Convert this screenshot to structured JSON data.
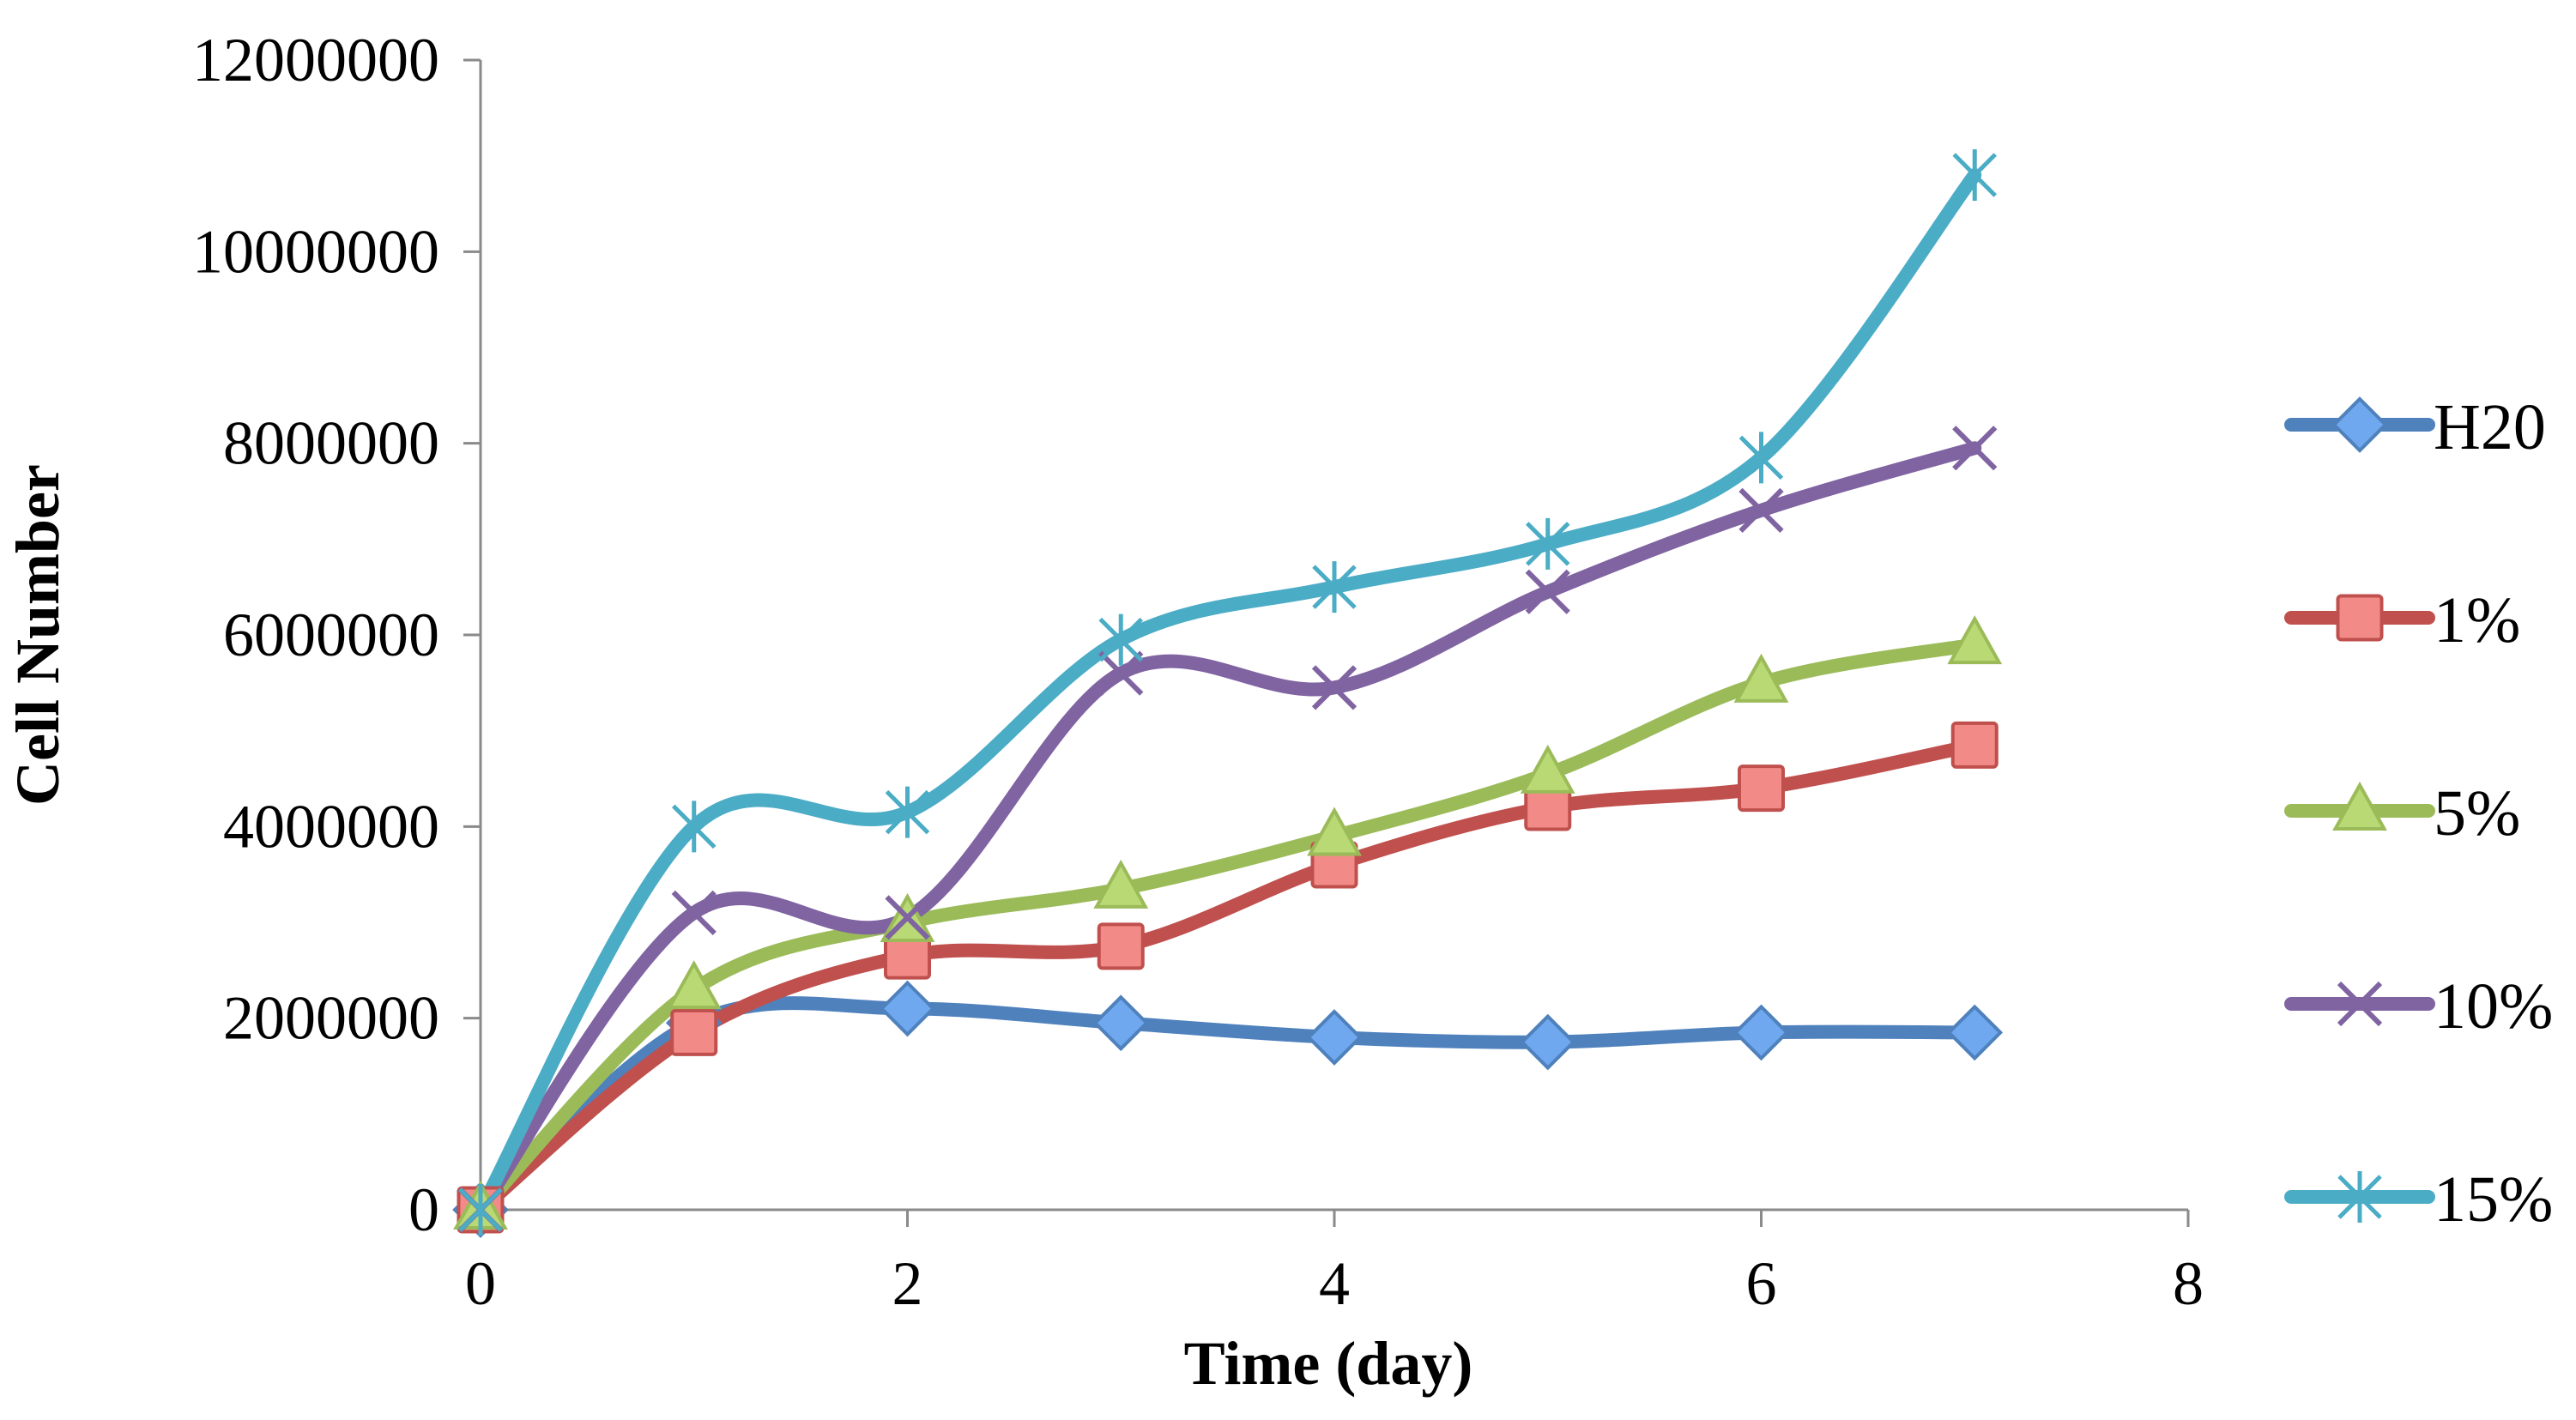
{
  "chart_data": {
    "type": "line",
    "title": "",
    "xlabel": "Time (day)",
    "ylabel": "Cell Number",
    "xlim": [
      0,
      8
    ],
    "ylim": [
      0,
      12000000
    ],
    "x_ticks": [
      0,
      2,
      4,
      6,
      8
    ],
    "y_ticks": [
      0,
      2000000,
      4000000,
      6000000,
      8000000,
      10000000,
      12000000
    ],
    "x_tick_labels": [
      "0",
      "2",
      "4",
      "6",
      "8"
    ],
    "y_tick_labels": [
      "0",
      "2000000",
      "4000000",
      "6000000",
      "8000000",
      "10000000",
      "12000000"
    ],
    "grid": false,
    "legend_position": "right",
    "x": [
      0,
      1,
      2,
      3,
      4,
      5,
      6,
      7
    ],
    "series": [
      {
        "name": "H20",
        "marker": "diamond",
        "color": "#4f81bd",
        "marker_fill": "#6fa8ee",
        "values": [
          0,
          1950000,
          2100000,
          1950000,
          1800000,
          1750000,
          1850000,
          1850000
        ]
      },
      {
        "name": "1%",
        "marker": "square",
        "color": "#c0504d",
        "marker_fill": "#f28b87",
        "values": [
          0,
          1850000,
          2650000,
          2750000,
          3600000,
          4200000,
          4400000,
          4850000
        ]
      },
      {
        "name": "5%",
        "marker": "triangle",
        "color": "#9bbb59",
        "marker_fill": "#b8d973",
        "values": [
          0,
          2300000,
          3000000,
          3350000,
          3900000,
          4550000,
          5500000,
          5900000
        ]
      },
      {
        "name": "10%",
        "marker": "x",
        "color": "#8064a2",
        "marker_fill": "#8064a2",
        "values": [
          0,
          3100000,
          3050000,
          5600000,
          5450000,
          6450000,
          7300000,
          7950000
        ]
      },
      {
        "name": "15%",
        "marker": "star",
        "color": "#4bacc6",
        "marker_fill": "#4bacc6",
        "values": [
          0,
          4000000,
          4150000,
          5950000,
          6500000,
          6950000,
          7850000,
          10800000
        ]
      }
    ]
  }
}
